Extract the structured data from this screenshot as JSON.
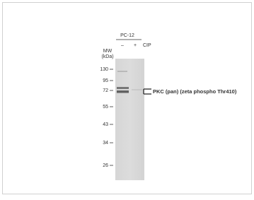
{
  "blot": {
    "cell_line": "PC-12",
    "lanes": [
      "–",
      "+"
    ],
    "treatment": "CIP",
    "mw_title": "MW",
    "mw_unit": "(kDa)",
    "markers": [
      "130",
      "95",
      "72",
      "55",
      "43",
      "34",
      "26"
    ],
    "target": "PKC (pan) (zeta phospho Thr410)"
  }
}
